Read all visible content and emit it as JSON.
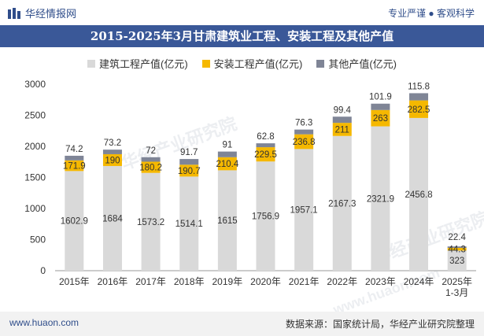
{
  "header": {
    "brand": "华经情报网",
    "tagline": "专业严谨 ● 客观科学"
  },
  "watermark": {
    "name": "华经产业研究院",
    "url": "www.huaon.com"
  },
  "footer": {
    "website": "www.huaon.com",
    "source": "数据来源：国家统计局，华经产业研究院整理"
  },
  "colors": {
    "construction": "#d9d9d9",
    "installation": "#f5b800",
    "other": "#7f8596",
    "title_bg": "#3a5898"
  },
  "chart_data": {
    "type": "bar",
    "stacked": true,
    "title": "2015-2025年3月甘肃建筑业工程、安装工程及其他产值",
    "categories": [
      "2015年",
      "2016年",
      "2017年",
      "2018年",
      "2019年",
      "2020年",
      "2021年",
      "2022年",
      "2023年",
      "2024年",
      "2025年\n1-3月"
    ],
    "series": [
      {
        "name": "建筑工程产值(亿元)",
        "values": [
          1602.9,
          1684,
          1573.2,
          1514.1,
          1615,
          1756.9,
          1957.1,
          2167.3,
          2321.9,
          2456.8,
          323
        ]
      },
      {
        "name": "安装工程产值(亿元)",
        "values": [
          171.9,
          190,
          180.2,
          190.7,
          210.4,
          229.5,
          236.8,
          211,
          263,
          282.5,
          44.3
        ]
      },
      {
        "name": "其他产值(亿元)",
        "values": [
          74.2,
          73.2,
          72,
          91.7,
          91,
          62.8,
          76.3,
          99.4,
          101.9,
          115.8,
          22.4
        ]
      }
    ],
    "ylim": [
      0,
      3000
    ],
    "yticks": [
      0,
      500,
      1000,
      1500,
      2000,
      2500,
      3000
    ],
    "legend_position": "top",
    "grid": false
  }
}
